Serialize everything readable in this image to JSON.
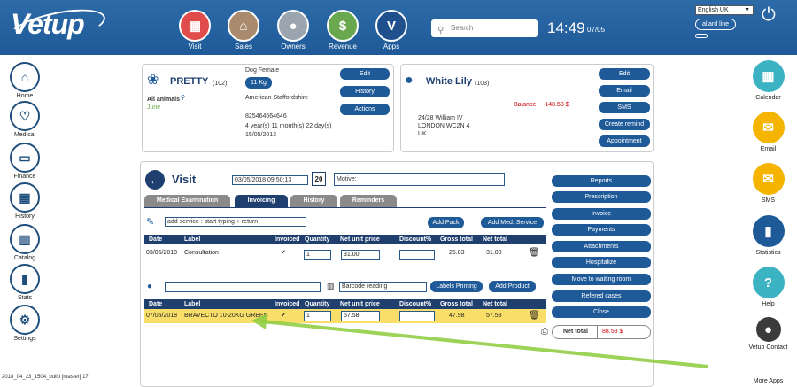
{
  "header": {
    "logo": "Vetup",
    "nav": [
      {
        "label": "Visit",
        "color": "#e04b4b",
        "glyph": "▦"
      },
      {
        "label": "Sales",
        "color": "#a98a6c",
        "glyph": "⌂"
      },
      {
        "label": "Owners",
        "color": "#9aa5b0",
        "glyph": "●"
      },
      {
        "label": "Revenue",
        "color": "#6aa84f",
        "glyph": "$"
      },
      {
        "label": "Apps",
        "color": "#1f4f8c",
        "glyph": "V"
      }
    ],
    "search_placeholder": "Search",
    "time": "14:49",
    "date": "07/05",
    "language": "English UK",
    "user": "allard line"
  },
  "left_nav": [
    {
      "label": "Home",
      "glyph": "⌂"
    },
    {
      "label": "Medical",
      "glyph": "♡"
    },
    {
      "label": "Finance",
      "glyph": "▭"
    },
    {
      "label": "History",
      "glyph": "▦"
    },
    {
      "label": "Catalog",
      "glyph": "▥"
    },
    {
      "label": "Stats",
      "glyph": "▮"
    },
    {
      "label": "Settings",
      "glyph": "⚙"
    }
  ],
  "right_nav": [
    {
      "label": "Calendar",
      "color": "#3bb3c3",
      "glyph": "▦"
    },
    {
      "label": "Email",
      "color": "#f4b400",
      "glyph": "✉"
    },
    {
      "label": "SMS",
      "color": "#f4b400",
      "glyph": "✉"
    },
    {
      "label": "Statistics",
      "color": "#1f5a98",
      "glyph": "▮"
    },
    {
      "label": "Help",
      "color": "#3bb3c3",
      "glyph": "?"
    },
    {
      "label": "Vetup Contact",
      "color": "#3b3b3b",
      "glyph": "●"
    },
    {
      "label": "More Apps",
      "color": "#ffffff",
      "glyph": ""
    }
  ],
  "build": "2018_04_23_1504_build [master] 17",
  "pet": {
    "name": "PRETTY",
    "id": "(102)",
    "species_sex": "Dog Female",
    "weight": "11 Kg",
    "breed": "American Staffordshire",
    "chip": "825464664646",
    "age": "4 year(s) 11 month(s) 22 day(s)",
    "dob": "15/05/2013",
    "group": "All animals",
    "group_sub": "June",
    "buttons": [
      "Edit",
      "History",
      "Actions"
    ]
  },
  "owner": {
    "name": "White Lily",
    "id": "(103)",
    "balance_label": "Balance",
    "balance": "-148.58 $",
    "address1": "24/28 William IV",
    "address2": "LONDON WC2N 4",
    "address3": "UK",
    "buttons": [
      "Edit",
      "Email",
      "SMS",
      "Create remind",
      "Appointment"
    ]
  },
  "visit": {
    "title": "Visit",
    "datetime": "03/05/2018 09:50:13",
    "calendar_day": "20",
    "motive_placeholder": "Motive:",
    "tabs": [
      "Medical Examination",
      "Invoicing",
      "History",
      "Reminders"
    ],
    "service_placeholder": "add service : start typing + return",
    "add_pack": "Add Pack",
    "add_med_service": "Add Med. Service",
    "columns": [
      "Date",
      "Label",
      "Invoiced",
      "Quantity",
      "Net unit price",
      "Discount%",
      "Gross total",
      "Net total"
    ],
    "services": [
      {
        "date": "03/05/2018",
        "label": "Consultation",
        "invoiced": "✔",
        "qty": "1",
        "price": "31.00",
        "discount": "",
        "gross": "25.83",
        "net": "31.00"
      }
    ],
    "barcode_placeholder": "Barcode reading",
    "labels_printing": "Labels Printing",
    "add_product": "Add Product",
    "products": [
      {
        "date": "07/05/2018",
        "label": "BRAVECTO 10-20KG GREEN",
        "invoiced": "✔",
        "qty": "1",
        "price": "57.58",
        "discount": "",
        "gross": "47.98",
        "net": "57.58"
      }
    ],
    "actions": [
      "Reports",
      "Prescription",
      "Invoice",
      "Payments",
      "Attachments",
      "Hospitalize",
      "Move to waiting room",
      "Refered cases",
      "Close"
    ],
    "net_total_label": "Net total",
    "net_total": "88.58 $"
  }
}
